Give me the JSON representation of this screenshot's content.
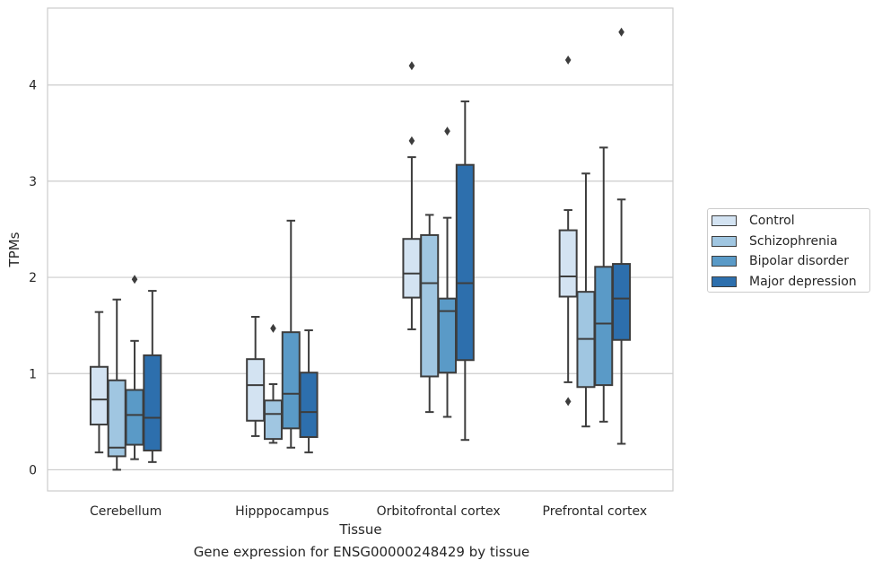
{
  "chart_data": {
    "type": "box",
    "title": "",
    "caption": "Gene expression for ENSG00000248429 by tissue",
    "xlabel": "Tissue",
    "ylabel": "TPMs",
    "ylim": [
      -0.22,
      4.8
    ],
    "yticks": [
      0,
      1,
      2,
      3,
      4
    ],
    "grid": "horizontal",
    "legend_position": "right",
    "categories": [
      "Cerebellum",
      "Hipppocampus",
      "Orbitofrontal cortex",
      "Prefrontal cortex"
    ],
    "series": [
      {
        "name": "Control",
        "color": "#d3e3f2",
        "boxes": [
          {
            "whislo": 0.18,
            "q1": 0.47,
            "med": 0.73,
            "q3": 1.07,
            "whishi": 1.64,
            "fliers": []
          },
          {
            "whislo": 0.35,
            "q1": 0.51,
            "med": 0.88,
            "q3": 1.15,
            "whishi": 1.59,
            "fliers": []
          },
          {
            "whislo": 1.46,
            "q1": 1.79,
            "med": 2.04,
            "q3": 2.4,
            "whishi": 3.25,
            "fliers": [
              3.42,
              4.2
            ]
          },
          {
            "whislo": 0.91,
            "q1": 1.8,
            "med": 2.01,
            "q3": 2.49,
            "whishi": 2.7,
            "fliers": [
              0.71,
              4.26
            ]
          }
        ]
      },
      {
        "name": "Schizophrenia",
        "color": "#a0c6e1",
        "boxes": [
          {
            "whislo": 0.0,
            "q1": 0.14,
            "med": 0.23,
            "q3": 0.93,
            "whishi": 1.77,
            "fliers": []
          },
          {
            "whislo": 0.28,
            "q1": 0.32,
            "med": 0.58,
            "q3": 0.72,
            "whishi": 0.89,
            "fliers": [
              1.47
            ]
          },
          {
            "whislo": 0.6,
            "q1": 0.97,
            "med": 1.94,
            "q3": 2.44,
            "whishi": 2.65,
            "fliers": []
          },
          {
            "whislo": 0.45,
            "q1": 0.86,
            "med": 1.36,
            "q3": 1.85,
            "whishi": 3.08,
            "fliers": []
          }
        ]
      },
      {
        "name": "Bipolar disorder",
        "color": "#5a9ac7",
        "boxes": [
          {
            "whislo": 0.11,
            "q1": 0.26,
            "med": 0.57,
            "q3": 0.83,
            "whishi": 1.34,
            "fliers": [
              1.98
            ]
          },
          {
            "whislo": 0.23,
            "q1": 0.43,
            "med": 0.79,
            "q3": 1.43,
            "whishi": 2.59,
            "fliers": []
          },
          {
            "whislo": 0.55,
            "q1": 1.01,
            "med": 1.65,
            "q3": 1.78,
            "whishi": 2.62,
            "fliers": [
              3.52
            ]
          },
          {
            "whislo": 0.5,
            "q1": 0.88,
            "med": 1.52,
            "q3": 2.11,
            "whishi": 3.35,
            "fliers": []
          }
        ]
      },
      {
        "name": "Major depression",
        "color": "#2d6fad",
        "boxes": [
          {
            "whislo": 0.08,
            "q1": 0.2,
            "med": 0.54,
            "q3": 1.19,
            "whishi": 1.86,
            "fliers": []
          },
          {
            "whislo": 0.18,
            "q1": 0.34,
            "med": 0.6,
            "q3": 1.01,
            "whishi": 1.45,
            "fliers": []
          },
          {
            "whislo": 0.31,
            "q1": 1.14,
            "med": 1.94,
            "q3": 3.17,
            "whishi": 3.83,
            "fliers": []
          },
          {
            "whislo": 0.27,
            "q1": 1.35,
            "med": 1.78,
            "q3": 2.14,
            "whishi": 2.81,
            "fliers": [
              4.55
            ]
          }
        ]
      }
    ]
  }
}
